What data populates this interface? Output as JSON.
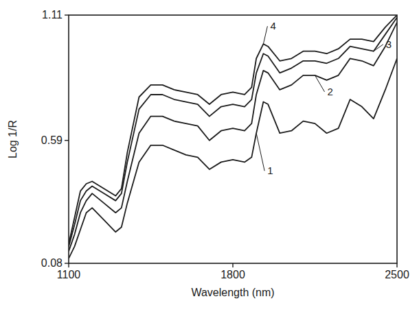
{
  "chart_data": {
    "type": "line",
    "x_label": "Wavelength (nm)",
    "y_label": "Log 1/R",
    "x": [
      1100,
      1125,
      1150,
      1175,
      1200,
      1250,
      1300,
      1325,
      1350,
      1400,
      1450,
      1500,
      1550,
      1600,
      1650,
      1700,
      1750,
      1800,
      1850,
      1880,
      1900,
      1930,
      1950,
      2000,
      2050,
      2100,
      2150,
      2200,
      2250,
      2300,
      2350,
      2400,
      2450,
      2500
    ],
    "series": [
      {
        "name": "1",
        "color": "#1a1a1a",
        "values": [
          0.1,
          0.15,
          0.22,
          0.29,
          0.31,
          0.26,
          0.21,
          0.23,
          0.33,
          0.5,
          0.57,
          0.57,
          0.55,
          0.53,
          0.52,
          0.47,
          0.5,
          0.51,
          0.5,
          0.52,
          0.62,
          0.75,
          0.74,
          0.62,
          0.63,
          0.67,
          0.66,
          0.62,
          0.64,
          0.76,
          0.73,
          0.68,
          0.8,
          0.93
        ]
      },
      {
        "name": "2",
        "color": "#1a1a1a",
        "values": [
          0.13,
          0.2,
          0.29,
          0.34,
          0.37,
          0.33,
          0.29,
          0.31,
          0.42,
          0.62,
          0.69,
          0.69,
          0.67,
          0.66,
          0.65,
          0.59,
          0.63,
          0.64,
          0.63,
          0.66,
          0.78,
          0.88,
          0.87,
          0.8,
          0.82,
          0.86,
          0.86,
          0.84,
          0.86,
          0.93,
          0.92,
          0.9,
          0.98,
          1.08
        ]
      },
      {
        "name": "3",
        "color": "#1a1a1a",
        "values": [
          0.15,
          0.24,
          0.34,
          0.38,
          0.4,
          0.37,
          0.34,
          0.37,
          0.5,
          0.72,
          0.78,
          0.78,
          0.76,
          0.75,
          0.74,
          0.69,
          0.73,
          0.74,
          0.73,
          0.76,
          0.87,
          0.95,
          0.94,
          0.87,
          0.89,
          0.92,
          0.92,
          0.91,
          0.93,
          0.98,
          0.97,
          0.96,
          1.03,
          1.1
        ]
      },
      {
        "name": "4",
        "color": "#1a1a1a",
        "values": [
          0.16,
          0.27,
          0.38,
          0.41,
          0.42,
          0.39,
          0.36,
          0.39,
          0.54,
          0.77,
          0.82,
          0.82,
          0.8,
          0.79,
          0.78,
          0.74,
          0.78,
          0.79,
          0.78,
          0.81,
          0.93,
          0.99,
          0.98,
          0.92,
          0.93,
          0.96,
          0.96,
          0.95,
          0.97,
          1.01,
          1.01,
          1.0,
          1.06,
          1.11
        ]
      }
    ],
    "xlim": [
      1100,
      2500
    ],
    "ylim": [
      0.08,
      1.11
    ],
    "xticks": [
      1100,
      1800,
      2500
    ],
    "yticks": [
      0.08,
      0.59,
      1.11
    ],
    "grid": false
  }
}
